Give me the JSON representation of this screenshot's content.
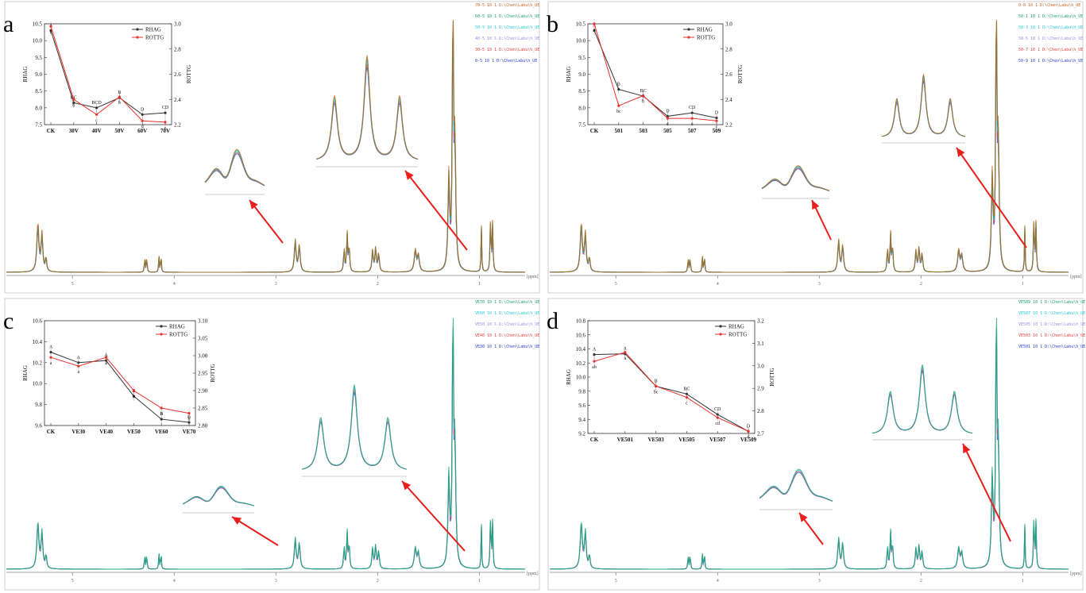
{
  "figure": {
    "panels": [
      {
        "letter": "a",
        "legend": [
          {
            "text": "70-5  10  1  D:\\Chen\\Labu\\h_UE",
            "color": "#c0601a"
          },
          {
            "text": "60-5  10  1  D:\\Chen\\Labu\\h_UE",
            "color": "#1a9e6e"
          },
          {
            "text": "50-5  10  1  D:\\Chen\\Labu\\h_UE",
            "color": "#25c8d8"
          },
          {
            "text": "40-5  10  1  D:\\Chen\\Labu\\h_UE",
            "color": "#9a8ee0"
          },
          {
            "text": "30-5  10  1  D:\\Chen\\Labu\\h_UE",
            "color": "#e04040"
          },
          {
            "text": "0-5  10  1  D:\\Chen\\Labu\\h_UE",
            "color": "#2a3cd0"
          }
        ],
        "spectrum": {
          "ticks": [
            "5",
            "4",
            "3",
            "2",
            "1"
          ],
          "unit": "[ppm]",
          "colors": [
            "#2a3cd0",
            "#e04040",
            "#25c8d8",
            "#1a9e6e",
            "#c0601a"
          ]
        },
        "inset": {
          "categories": [
            "CK",
            "30V",
            "40V",
            "50V",
            "60V",
            "70V"
          ],
          "left_axis": {
            "label": "RHAG",
            "min": 7.5,
            "max": 10.5,
            "ticks": [
              "7.5",
              "8.0",
              "8.5",
              "9.0",
              "9.5",
              "10.0",
              "10.5"
            ]
          },
          "right_axis": {
            "label": "ROTTG",
            "min": 2.2,
            "max": 3.0,
            "ticks": [
              "2.2",
              "2.4",
              "2.6",
              "2.8",
              "3.0"
            ]
          },
          "series": [
            {
              "name": "RHAG",
              "color": "#333333",
              "values": [
                10.3,
                8.15,
                8.0,
                8.3,
                7.8,
                7.85
              ],
              "letters": [
                "A",
                "BC",
                "BCD",
                "B",
                "D",
                "CD"
              ]
            },
            {
              "name": "ROTTG",
              "color": "#e8322d",
              "values": [
                2.98,
                2.4,
                2.28,
                2.42,
                2.23,
                2.22
              ],
              "letters": [
                "a",
                "b",
                "c",
                "b",
                "d",
                "e"
              ]
            }
          ]
        }
      },
      {
        "letter": "b",
        "legend": [
          {
            "text": "0-0  10  1  D:\\Chen\\Labu\\h_UE",
            "color": "#c0601a"
          },
          {
            "text": "50-1  10  1  D:\\Chen\\Labu\\h_UE",
            "color": "#1a9e6e"
          },
          {
            "text": "50-3  10  1  D:\\Chen\\Labu\\h_UE",
            "color": "#25c8d8"
          },
          {
            "text": "50-5  10  1  D:\\Chen\\Labu\\h_UE",
            "color": "#9a8ee0"
          },
          {
            "text": "50-7  10  1  D:\\Chen\\Labu\\h_UE",
            "color": "#e04040"
          },
          {
            "text": "50-9  10  1  D:\\Chen\\Labu\\h_UE",
            "color": "#2a3cd0"
          }
        ],
        "spectrum": {
          "ticks": [
            "5",
            "4",
            "3",
            "2",
            "1"
          ],
          "unit": "[ppm]",
          "colors": [
            "#2a3cd0",
            "#e04040",
            "#25c8d8",
            "#1a9e6e",
            "#c0601a"
          ]
        },
        "inset": {
          "categories": [
            "CK",
            "501",
            "503",
            "505",
            "507",
            "509"
          ],
          "left_axis": {
            "label": "RHAG",
            "min": 7.5,
            "max": 10.5,
            "ticks": [
              "7.5",
              "8.0",
              "8.5",
              "9.0",
              "9.5",
              "10.0",
              "10.5"
            ]
          },
          "right_axis": {
            "label": "ROTTG",
            "min": 2.2,
            "max": 3.0,
            "ticks": [
              "2.2",
              "2.4",
              "2.6",
              "2.8",
              "3.0"
            ]
          },
          "series": [
            {
              "name": "RHAG",
              "color": "#333333",
              "values": [
                10.3,
                8.55,
                8.35,
                7.75,
                7.85,
                7.7
              ],
              "letters": [
                "A",
                "B",
                "BC",
                "D",
                "CD",
                "D"
              ]
            },
            {
              "name": "ROTTG",
              "color": "#e8322d",
              "values": [
                3.0,
                2.35,
                2.43,
                2.25,
                2.25,
                2.23
              ],
              "letters": [
                "a",
                "bc",
                "b",
                "c",
                "c",
                "c"
              ]
            }
          ]
        }
      },
      {
        "letter": "c",
        "legend": [
          {
            "text": "VE70  10  1  D:\\Chen\\Labu\\h_UE",
            "color": "#1a9e6e"
          },
          {
            "text": "VE60  10  1  D:\\Chen\\Labu\\h_UE",
            "color": "#25c8d8"
          },
          {
            "text": "VE50  10  1  D:\\Chen\\Labu\\h_UE",
            "color": "#9a8ee0"
          },
          {
            "text": "VE40  10  1  D:\\Chen\\Labu\\h_UE",
            "color": "#e04040"
          },
          {
            "text": "VE30  10  1  D:\\Chen\\Labu\\h_UE",
            "color": "#2a3cd0"
          }
        ],
        "spectrum": {
          "ticks": [
            "5",
            "4",
            "3",
            "2",
            "1"
          ],
          "unit": "[ppm]",
          "colors": [
            "#2a3cd0",
            "#e04040",
            "#25c8d8",
            "#1a9e6e"
          ]
        },
        "inset": {
          "categories": [
            "CK",
            "VE30",
            "VE40",
            "VE50",
            "VE60",
            "VE70"
          ],
          "left_axis": {
            "label": "RHAG",
            "min": 9.6,
            "max": 10.6,
            "ticks": [
              "9.6",
              "9.8",
              "10.0",
              "10.2",
              "10.4",
              "10.6"
            ]
          },
          "right_axis": {
            "label": "ROTTG",
            "min": 2.8,
            "max": 3.1,
            "ticks": [
              "2.80",
              "2.85",
              "2.90",
              "2.95",
              "3.00",
              "3.05",
              "3.10"
            ]
          },
          "series": [
            {
              "name": "RHAG",
              "color": "#333333",
              "values": [
                10.3,
                10.2,
                10.22,
                9.88,
                9.66,
                9.63
              ],
              "letters": [
                "A",
                "A",
                "A",
                "B",
                "B",
                "B"
              ]
            },
            {
              "name": "ROTTG",
              "color": "#e8322d",
              "values": [
                2.995,
                2.97,
                2.995,
                2.9,
                2.85,
                2.835
              ],
              "letters": [
                "a",
                "a",
                "a",
                "b",
                "b",
                "b"
              ]
            }
          ]
        }
      },
      {
        "letter": "d",
        "legend": [
          {
            "text": "VE509  10  1  D:\\Chen\\Labu\\h_UE",
            "color": "#1a9e6e"
          },
          {
            "text": "VE507  10  1  D:\\Chen\\Labu\\h_UE",
            "color": "#25c8d8"
          },
          {
            "text": "VE505  10  1  D:\\Chen\\Labu\\h_UE",
            "color": "#9a8ee0"
          },
          {
            "text": "VE503  10  1  D:\\Chen\\Labu\\h_UE",
            "color": "#e04040"
          },
          {
            "text": "VE501  10  1  D:\\Chen\\Labu\\h_UE",
            "color": "#2a3cd0"
          }
        ],
        "spectrum": {
          "ticks": [
            "5",
            "4",
            "3",
            "2",
            "1"
          ],
          "unit": "[ppm]",
          "colors": [
            "#2a3cd0",
            "#e04040",
            "#25c8d8",
            "#1a9e6e"
          ]
        },
        "inset": {
          "categories": [
            "CK",
            "VE501",
            "VE503",
            "VE505",
            "VE507",
            "VE509"
          ],
          "left_axis": {
            "label": "RHAG",
            "min": 9.2,
            "max": 10.8,
            "ticks": [
              "9.2",
              "9.4",
              "9.6",
              "9.8",
              "10.0",
              "10.2",
              "10.4",
              "10.6",
              "10.8"
            ]
          },
          "right_axis": {
            "label": "ROTTG",
            "min": 2.7,
            "max": 3.2,
            "ticks": [
              "2.7",
              "2.8",
              "2.9",
              "3.0",
              "3.1",
              "3.2"
            ]
          },
          "series": [
            {
              "name": "RHAG",
              "color": "#333333",
              "values": [
                10.32,
                10.33,
                9.87,
                9.76,
                9.47,
                9.23
              ],
              "letters": [
                "A",
                "A",
                "B",
                "BC",
                "CD",
                "D"
              ]
            },
            {
              "name": "ROTTG",
              "color": "#e8322d",
              "values": [
                3.02,
                3.06,
                2.91,
                2.86,
                2.77,
                2.71
              ],
              "letters": [
                "ab",
                "a",
                "bc",
                "c",
                "cd",
                "d"
              ]
            }
          ]
        }
      }
    ]
  }
}
